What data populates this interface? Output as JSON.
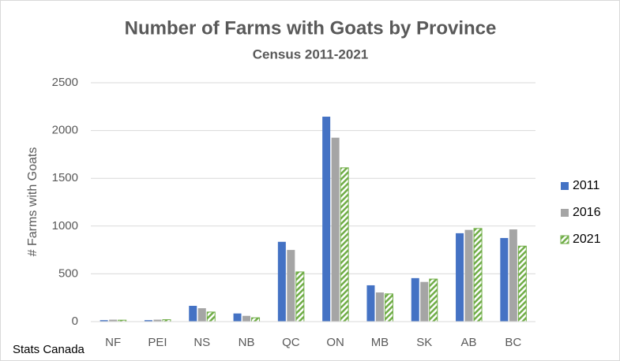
{
  "chart_data": {
    "type": "bar",
    "title": "Number of Farms with Goats by Province",
    "subtitle": "Census 2011-2021",
    "y_label": "# Farms with Goats",
    "source": "Stats Canada",
    "categories": [
      "NF",
      "PEI",
      "NS",
      "NB",
      "QC",
      "ON",
      "MB",
      "SK",
      "AB",
      "BC"
    ],
    "series": [
      {
        "name": "2011",
        "color": "#4472c4",
        "values": [
          15,
          15,
          165,
          85,
          835,
          2145,
          380,
          455,
          925,
          875
        ]
      },
      {
        "name": "2016",
        "color": "#a5a5a5",
        "values": [
          20,
          20,
          140,
          60,
          750,
          1925,
          305,
          415,
          960,
          965
        ]
      },
      {
        "name": "2021",
        "color": "#70ad47",
        "pattern": "diagonal-hatch",
        "values": [
          15,
          20,
          100,
          40,
          520,
          1610,
          290,
          445,
          975,
          790
        ]
      }
    ],
    "ylim": [
      0,
      2500
    ],
    "yticks": [
      0,
      500,
      1000,
      1500,
      2000,
      2500
    ],
    "grid": true,
    "legend": "right"
  }
}
